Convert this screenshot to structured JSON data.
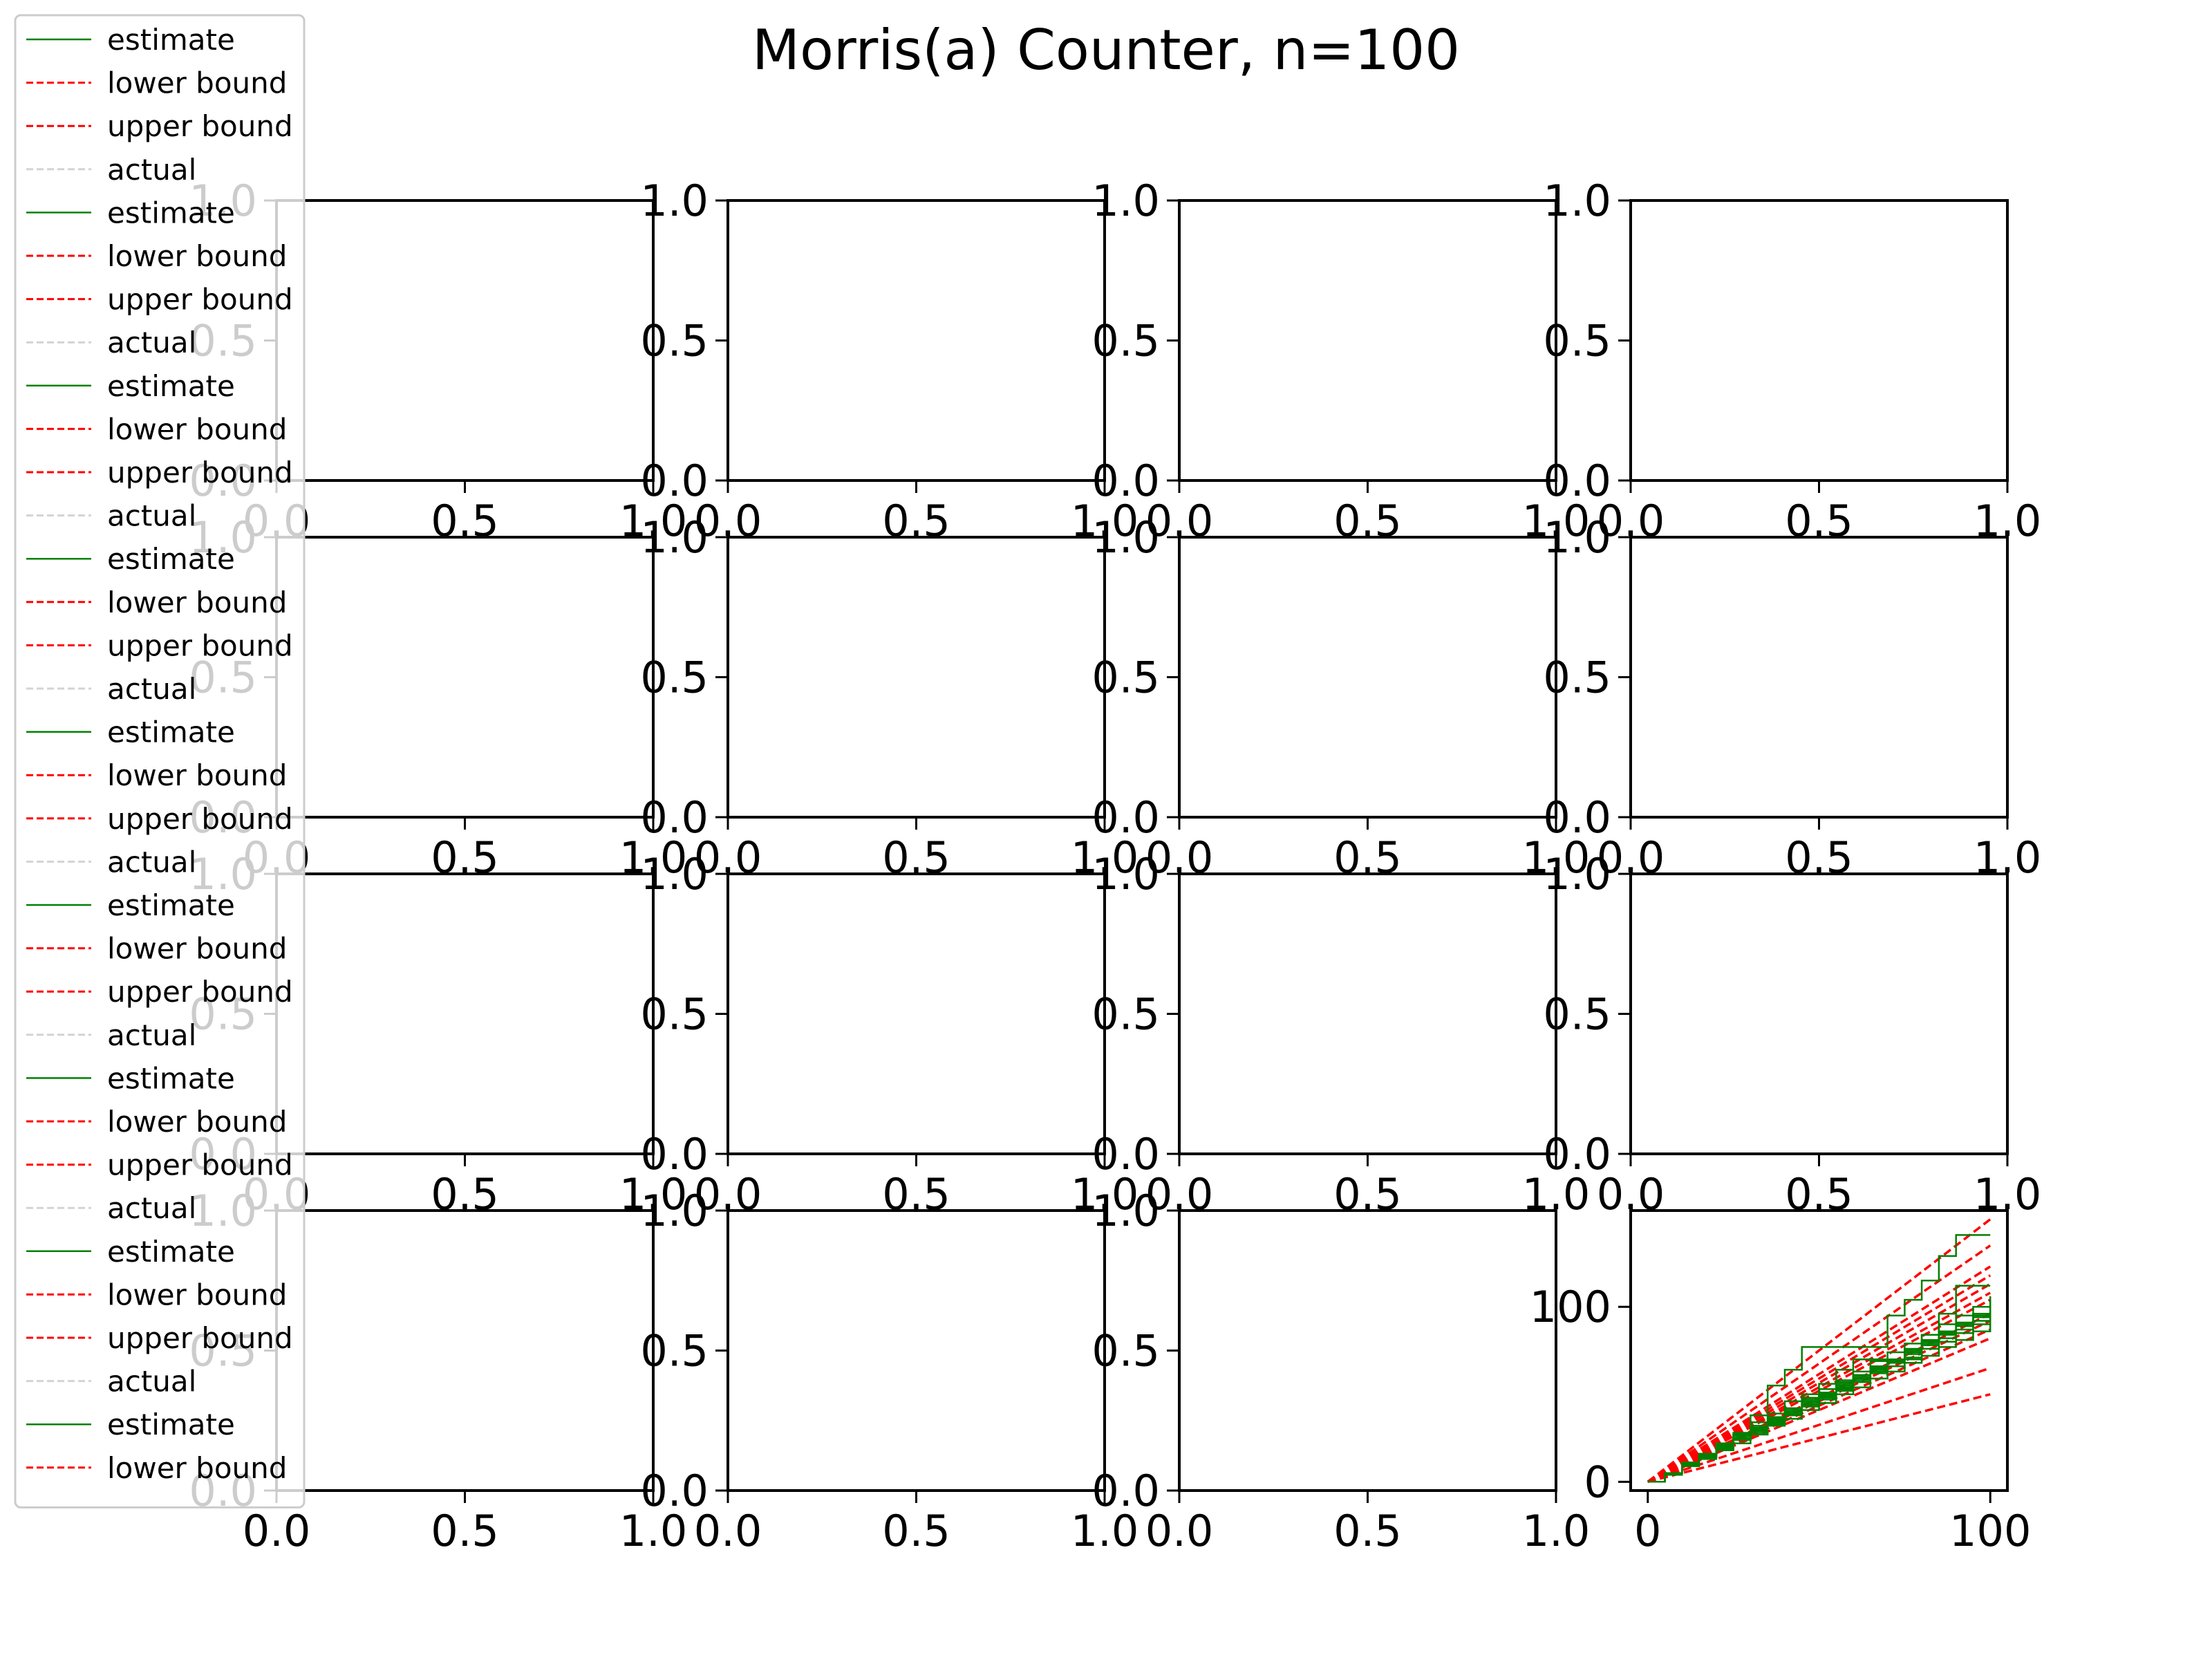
{
  "title": "Morris(a) Counter, n=100",
  "colors": {
    "estimate": "#008000",
    "bound": "#ff0000",
    "actual": "#d3d3d3",
    "axis": "#000000"
  },
  "legend": {
    "placement": "upper-left",
    "entries": [
      {
        "label": "estimate",
        "style": "estimate"
      },
      {
        "label": "lower bound",
        "style": "bound"
      },
      {
        "label": "upper bound",
        "style": "bound"
      },
      {
        "label": "actual",
        "style": "actual"
      },
      {
        "label": "estimate",
        "style": "estimate"
      },
      {
        "label": "lower bound",
        "style": "bound"
      },
      {
        "label": "upper bound",
        "style": "bound"
      },
      {
        "label": "actual",
        "style": "actual"
      },
      {
        "label": "estimate",
        "style": "estimate"
      },
      {
        "label": "lower bound",
        "style": "bound"
      },
      {
        "label": "upper bound",
        "style": "bound"
      },
      {
        "label": "actual",
        "style": "actual"
      },
      {
        "label": "estimate",
        "style": "estimate"
      },
      {
        "label": "lower bound",
        "style": "bound"
      },
      {
        "label": "upper bound",
        "style": "bound"
      },
      {
        "label": "actual",
        "style": "actual"
      },
      {
        "label": "estimate",
        "style": "estimate"
      },
      {
        "label": "lower bound",
        "style": "bound"
      },
      {
        "label": "upper bound",
        "style": "bound"
      },
      {
        "label": "actual",
        "style": "actual"
      },
      {
        "label": "estimate",
        "style": "estimate"
      },
      {
        "label": "lower bound",
        "style": "bound"
      },
      {
        "label": "upper bound",
        "style": "bound"
      },
      {
        "label": "actual",
        "style": "actual"
      },
      {
        "label": "estimate",
        "style": "estimate"
      },
      {
        "label": "lower bound",
        "style": "bound"
      },
      {
        "label": "upper bound",
        "style": "bound"
      },
      {
        "label": "actual",
        "style": "actual"
      },
      {
        "label": "estimate",
        "style": "estimate"
      },
      {
        "label": "lower bound",
        "style": "bound"
      },
      {
        "label": "upper bound",
        "style": "bound"
      },
      {
        "label": "actual",
        "style": "actual"
      },
      {
        "label": "estimate",
        "style": "estimate"
      },
      {
        "label": "lower bound",
        "style": "bound"
      }
    ]
  },
  "chart_data": {
    "type": "line",
    "layout": {
      "rows": 4,
      "cols": 4
    },
    "empty_axes": {
      "xlim": [
        0,
        1
      ],
      "ylim": [
        0,
        1
      ],
      "xticks": [
        0,
        0.5,
        1
      ],
      "yticks": [
        0,
        0.5,
        1
      ],
      "xtick_labels": [
        "0.0",
        "0.5",
        "1.0"
      ],
      "ytick_labels": [
        "0.0",
        "0.5",
        "1.0"
      ]
    },
    "active_subplot": {
      "row": 4,
      "col": 4,
      "xlim": [
        -5,
        105
      ],
      "ylim": [
        -5,
        155
      ],
      "xticks": [
        0,
        100
      ],
      "yticks": [
        0,
        100
      ],
      "xtick_labels": [
        "0",
        "100"
      ],
      "ytick_labels": [
        "0",
        "100"
      ],
      "estimate_series": [
        {
          "x": [
            0,
            5,
            10,
            15,
            20,
            25,
            30,
            35,
            40,
            45,
            50,
            55,
            60,
            65,
            70,
            75,
            80,
            85,
            90,
            95,
            100
          ],
          "y": [
            0,
            5,
            10,
            14,
            19,
            27,
            38,
            55,
            64,
            77,
            77,
            77,
            77,
            77,
            95,
            104,
            115,
            129,
            141,
            141,
            141
          ]
        },
        {
          "x": [
            0,
            5,
            10,
            15,
            20,
            25,
            30,
            35,
            40,
            45,
            50,
            55,
            60,
            65,
            70,
            75,
            80,
            85,
            90,
            95,
            100
          ],
          "y": [
            0,
            5,
            10,
            15,
            20,
            28,
            34,
            39,
            46,
            50,
            56,
            64,
            70,
            70,
            70,
            70,
            84,
            96,
            112,
            112,
            112
          ]
        },
        {
          "x": [
            0,
            5,
            10,
            15,
            20,
            25,
            30,
            35,
            40,
            45,
            50,
            55,
            60,
            65,
            70,
            75,
            80,
            85,
            90,
            95,
            100
          ],
          "y": [
            0,
            4,
            9,
            14,
            19,
            24,
            29,
            34,
            39,
            44,
            49,
            54,
            59,
            64,
            69,
            74,
            79,
            84,
            89,
            94,
            99
          ]
        },
        {
          "x": [
            0,
            5,
            10,
            15,
            20,
            25,
            30,
            35,
            40,
            45,
            50,
            55,
            60,
            65,
            70,
            75,
            80,
            85,
            90,
            95,
            100
          ],
          "y": [
            0,
            5,
            11,
            16,
            22,
            27,
            31,
            37,
            42,
            47,
            51,
            57,
            61,
            66,
            70,
            76,
            81,
            86,
            90,
            96,
            104
          ]
        },
        {
          "x": [
            0,
            5,
            10,
            15,
            20,
            25,
            30,
            35,
            40,
            45,
            50,
            55,
            60,
            65,
            70,
            75,
            80,
            85,
            90,
            95,
            100
          ],
          "y": [
            0,
            5,
            9,
            13,
            18,
            22,
            27,
            32,
            36,
            41,
            45,
            50,
            54,
            59,
            63,
            68,
            72,
            77,
            81,
            86,
            90
          ]
        },
        {
          "x": [
            0,
            5,
            10,
            15,
            20,
            25,
            30,
            35,
            40,
            45,
            50,
            55,
            60,
            65,
            70,
            75,
            80,
            85,
            90,
            95,
            100
          ],
          "y": [
            0,
            5,
            10,
            15,
            21,
            26,
            30,
            36,
            40,
            45,
            50,
            56,
            60,
            65,
            70,
            75,
            80,
            85,
            90,
            95,
            100
          ]
        },
        {
          "x": [
            0,
            5,
            10,
            15,
            20,
            25,
            30,
            35,
            40,
            45,
            50,
            55,
            60,
            65,
            70,
            75,
            80,
            85,
            90,
            95,
            100
          ],
          "y": [
            0,
            5,
            10,
            14,
            19,
            24,
            28,
            33,
            38,
            43,
            47,
            52,
            57,
            62,
            66,
            71,
            76,
            80,
            85,
            90,
            95
          ]
        },
        {
          "x": [
            0,
            5,
            10,
            15,
            20,
            25,
            30,
            35,
            40,
            45,
            50,
            55,
            60,
            65,
            70,
            75,
            80,
            85,
            90,
            95,
            100
          ],
          "y": [
            0,
            5,
            11,
            16,
            21,
            27,
            32,
            37,
            42,
            48,
            53,
            58,
            63,
            69,
            74,
            79,
            84,
            90,
            95,
            100,
            106
          ]
        },
        {
          "x": [
            0,
            5,
            10,
            15,
            20,
            25,
            30,
            35,
            40,
            45,
            50,
            55,
            60,
            65,
            70,
            75,
            80,
            85,
            90,
            95,
            100
          ],
          "y": [
            0,
            5,
            10,
            15,
            20,
            25,
            30,
            35,
            41,
            46,
            50,
            55,
            60,
            65,
            70,
            75,
            81,
            86,
            91,
            96,
            102
          ]
        },
        {
          "x": [
            0,
            5,
            10,
            15,
            20,
            25,
            30,
            35,
            40,
            45,
            50,
            55,
            60,
            65,
            70,
            75,
            80,
            85,
            90,
            95,
            100
          ],
          "y": [
            0,
            5,
            10,
            15,
            19,
            24,
            29,
            34,
            39,
            44,
            48,
            53,
            58,
            63,
            68,
            73,
            78,
            82,
            87,
            92,
            97
          ]
        }
      ],
      "bound_lines": [
        {
          "x": [
            0,
            100
          ],
          "y": [
            0,
            150
          ]
        },
        {
          "x": [
            0,
            100
          ],
          "y": [
            0,
            135
          ]
        },
        {
          "x": [
            0,
            100
          ],
          "y": [
            0,
            123
          ]
        },
        {
          "x": [
            0,
            100
          ],
          "y": [
            0,
            118
          ]
        },
        {
          "x": [
            0,
            100
          ],
          "y": [
            0,
            113
          ]
        },
        {
          "x": [
            0,
            100
          ],
          "y": [
            0,
            108
          ]
        },
        {
          "x": [
            0,
            100
          ],
          "y": [
            0,
            104
          ]
        },
        {
          "x": [
            0,
            100
          ],
          "y": [
            0,
            96
          ]
        },
        {
          "x": [
            0,
            100
          ],
          "y": [
            0,
            92
          ]
        },
        {
          "x": [
            0,
            100
          ],
          "y": [
            0,
            87
          ]
        },
        {
          "x": [
            0,
            100
          ],
          "y": [
            0,
            82
          ]
        },
        {
          "x": [
            0,
            100
          ],
          "y": [
            0,
            65
          ]
        },
        {
          "x": [
            0,
            100
          ],
          "y": [
            0,
            50
          ]
        }
      ]
    }
  }
}
